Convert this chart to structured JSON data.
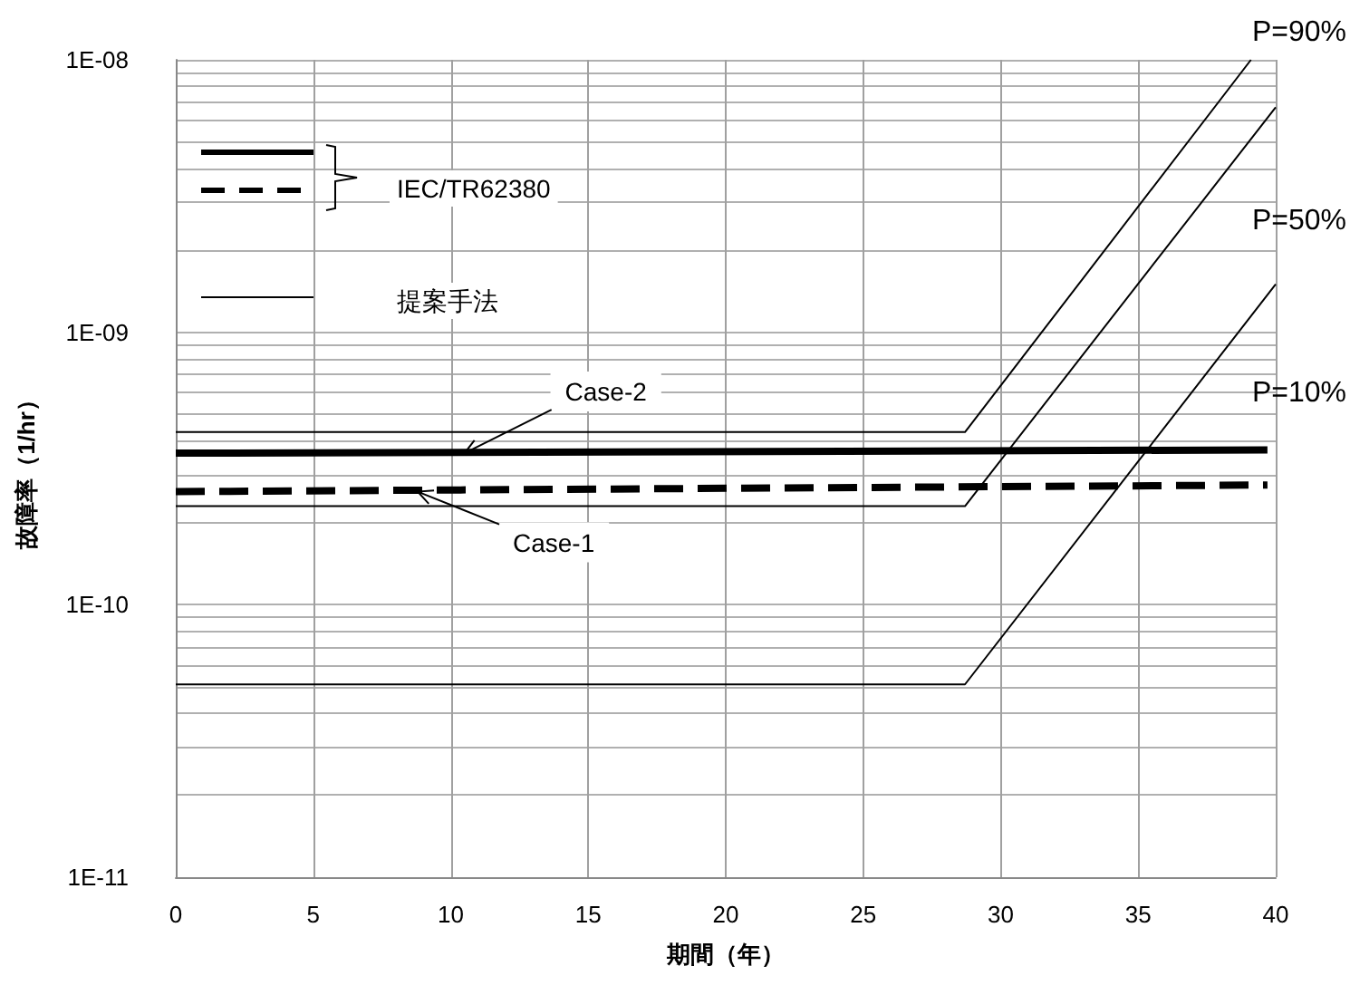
{
  "chart_data": {
    "type": "line",
    "xlabel": "期間（年）",
    "ylabel": "故障率（1/hr）",
    "log": "y",
    "grid": true,
    "marker": "none",
    "xlim": [
      0,
      40
    ],
    "xticks": [
      0,
      5,
      10,
      15,
      20,
      25,
      30,
      35,
      40
    ],
    "ylim": [
      1e-11,
      1e-08
    ],
    "yticks": [
      {
        "value": 1e-11,
        "label": "1E-11"
      },
      {
        "value": 2e-11,
        "label": null
      },
      {
        "value": 3e-11,
        "label": null
      },
      {
        "value": 4e-11,
        "label": null
      },
      {
        "value": 5e-11,
        "label": null
      },
      {
        "value": 6e-11,
        "label": null
      },
      {
        "value": 7e-11,
        "label": null
      },
      {
        "value": 8e-11,
        "label": null
      },
      {
        "value": 9e-11,
        "label": null
      },
      {
        "value": 1e-10,
        "label": "1E-10"
      },
      {
        "value": 2e-10,
        "label": null
      },
      {
        "value": 3e-10,
        "label": null
      },
      {
        "value": 4e-10,
        "label": null
      },
      {
        "value": 5e-10,
        "label": null
      },
      {
        "value": 6e-10,
        "label": null
      },
      {
        "value": 7e-10,
        "label": null
      },
      {
        "value": 8e-10,
        "label": null
      },
      {
        "value": 9e-10,
        "label": null
      },
      {
        "value": 1e-09,
        "label": "1E-09"
      },
      {
        "value": 2e-09,
        "label": null
      },
      {
        "value": 3e-09,
        "label": null
      },
      {
        "value": 4e-09,
        "label": null
      },
      {
        "value": 5e-09,
        "label": null
      },
      {
        "value": 6e-09,
        "label": null
      },
      {
        "value": 7e-09,
        "label": null
      },
      {
        "value": 8e-09,
        "label": null
      },
      {
        "value": 9e-09,
        "label": null
      },
      {
        "value": 1e-08,
        "label": "1E-08"
      }
    ],
    "series": [
      {
        "color": "#000000",
        "line_style": "solid",
        "x": [
          0,
          28.7,
          39.1
        ],
        "values": [
          4.3e-10,
          4.3e-10,
          1e-08
        ]
      },
      {
        "color": "#000000",
        "line_style": "solid",
        "x": [
          0,
          28.7,
          40
        ],
        "values": [
          2.3e-10,
          2.3e-10,
          6.7e-09
        ]
      },
      {
        "color": "#000000",
        "line_style": "solid",
        "x": [
          0,
          28.7,
          40
        ],
        "values": [
          5.1e-11,
          5.1e-11,
          1.5e-09
        ]
      },
      {
        "color": "#000000",
        "line_style": "solid",
        "x": [
          0,
          39.7
        ],
        "values": [
          3.6e-10,
          3.7e-10
        ]
      },
      {
        "color": "#000000",
        "line_style": "dashed",
        "x": [
          0,
          39.7
        ],
        "values": [
          2.6e-10,
          2.75e-10
        ]
      }
    ],
    "annotations": [
      "IEC/TR62380",
      "提案手法",
      {
        "text": "Case-2",
        "x": 10.5,
        "y": 3.6e-10
      },
      {
        "text": "Case-1",
        "x": 8.8,
        "y": 2.6e-10
      },
      "P=90%",
      "P=50%",
      "P=10%"
    ]
  }
}
